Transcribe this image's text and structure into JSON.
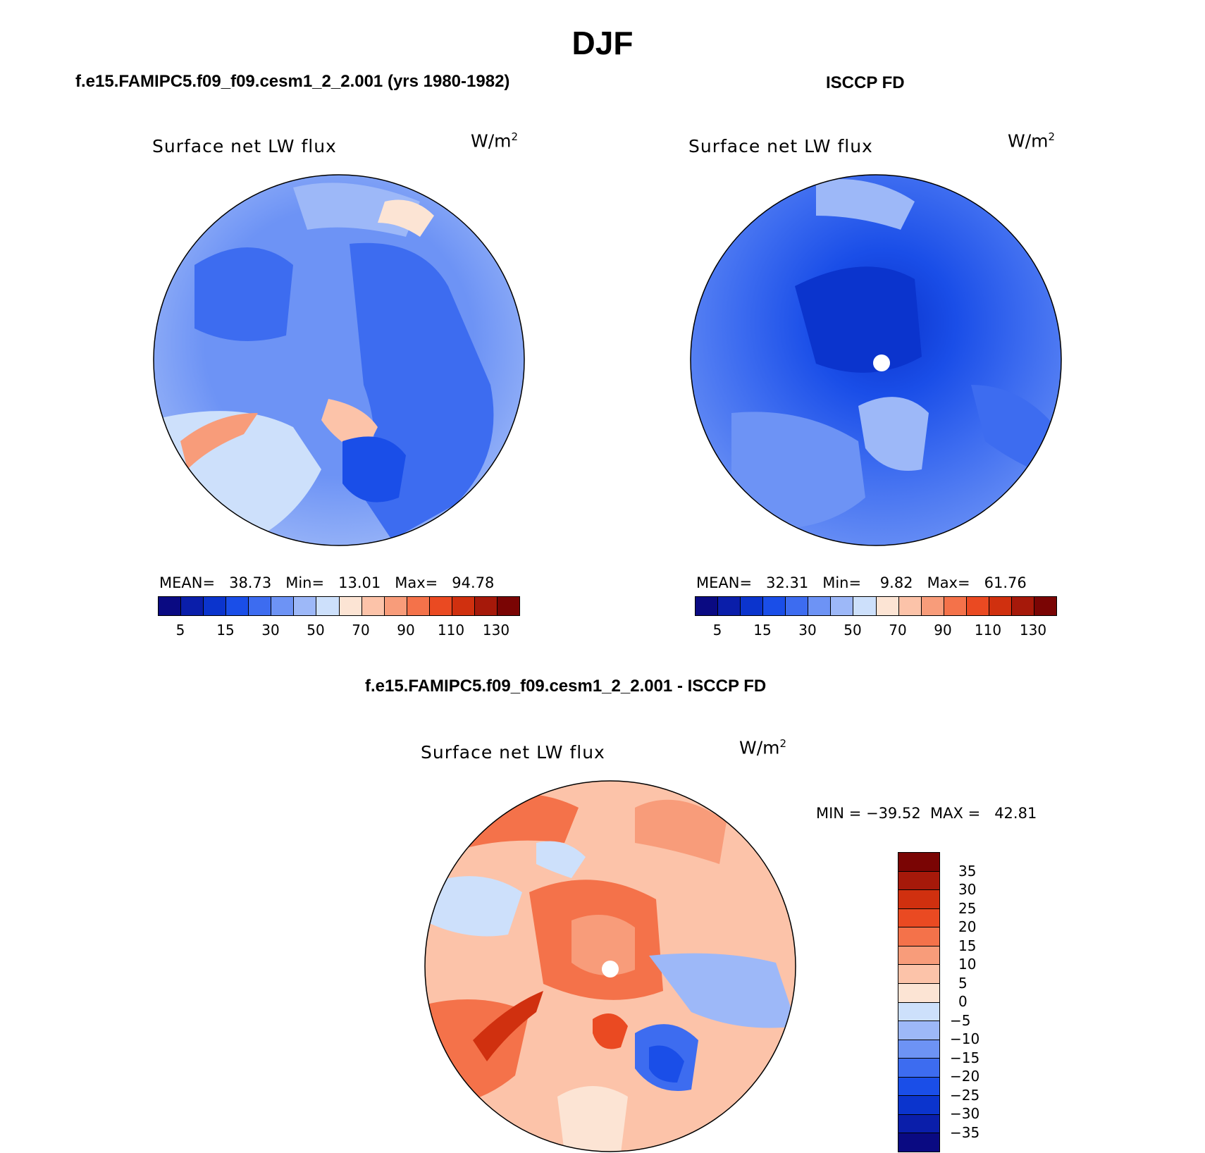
{
  "figure": {
    "title": "DJF",
    "bottom_title": "f.e15.FAMIPC5.f09_f09.cesm1_2_2.001 - ISCCP FD"
  },
  "panels": [
    {
      "case_title": "f.e15.FAMIPC5.f09_f09.cesm1_2_2.001 (yrs 1980-1982)",
      "variable": "Surface net LW flux",
      "unit": "W/m",
      "unit_sup": "2",
      "stats": "MEAN=   38.73   Min=   13.01   Max=   94.78",
      "mean": 38.73,
      "min": 13.01,
      "max": 94.78
    },
    {
      "case_title": "ISCCP FD",
      "variable": "Surface net LW flux",
      "unit": "W/m",
      "unit_sup": "2",
      "stats": "MEAN=   32.31   Min=    9.82   Max=   61.76",
      "mean": 32.31,
      "min": 9.82,
      "max": 61.76
    },
    {
      "variable": "Surface net LW flux",
      "unit": "W/m",
      "unit_sup": "2",
      "stats": "MIN = −39.52  MAX =   42.81",
      "min": -39.52,
      "max": 42.81
    }
  ],
  "colorbar_abs": {
    "colors": [
      "#0a0a82",
      "#0a1eaa",
      "#0b34cd",
      "#1a4ee8",
      "#3d6cf0",
      "#6d93f5",
      "#9db8f8",
      "#cde0fb",
      "#fce4d4",
      "#fcc3a9",
      "#f89c7a",
      "#f4724a",
      "#ea4a22",
      "#d0300f",
      "#a6190a",
      "#7a0504"
    ],
    "ticks": [
      "5",
      "15",
      "30",
      "50",
      "70",
      "90",
      "110",
      "130"
    ]
  },
  "colorbar_diff": {
    "colors": [
      "#7a0504",
      "#a6190a",
      "#d0300f",
      "#ea4a22",
      "#f4724a",
      "#f89c7a",
      "#fcc3a9",
      "#fce4d4",
      "#cde0fb",
      "#9db8f8",
      "#6d93f5",
      "#3d6cf0",
      "#1a4ee8",
      "#0b34cd",
      "#0a1eaa",
      "#0a0a82"
    ],
    "ticks": [
      "35",
      "30",
      "25",
      "20",
      "15",
      "10",
      "5",
      "0",
      "−5",
      "−10",
      "−15",
      "−20",
      "−25",
      "−30",
      "−35"
    ]
  }
}
